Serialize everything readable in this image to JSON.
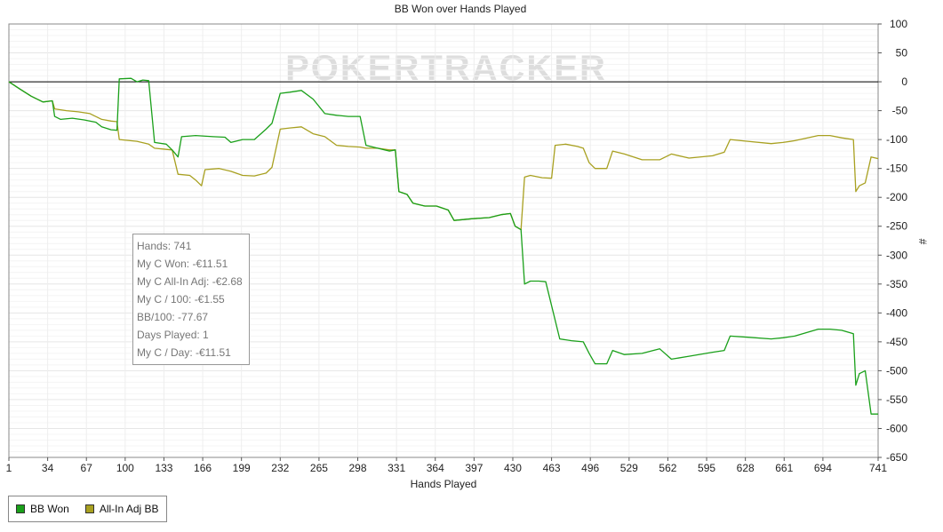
{
  "chart_data": {
    "type": "line",
    "title": "BB Won over Hands Played",
    "xlabel": "Hands Played",
    "ylabel": "#",
    "watermark": "POKERTRACKER",
    "xlim": [
      1,
      741
    ],
    "ylim": [
      -650,
      100
    ],
    "x_ticks": [
      1,
      34,
      67,
      100,
      133,
      166,
      199,
      232,
      265,
      298,
      331,
      364,
      397,
      430,
      463,
      496,
      529,
      562,
      595,
      628,
      661,
      694,
      741
    ],
    "y_ticks": [
      100,
      50,
      0,
      -50,
      -100,
      -150,
      -200,
      -250,
      -300,
      -350,
      -400,
      -450,
      -500,
      -550,
      -600,
      -650
    ],
    "grid": true,
    "legend_position": "bottom-left",
    "series": [
      {
        "name": "BB Won",
        "color": "#1aa01a",
        "points": [
          [
            1,
            0
          ],
          [
            10,
            -12
          ],
          [
            20,
            -25
          ],
          [
            30,
            -35
          ],
          [
            38,
            -33
          ],
          [
            40,
            -60
          ],
          [
            45,
            -65
          ],
          [
            55,
            -63
          ],
          [
            65,
            -66
          ],
          [
            75,
            -70
          ],
          [
            80,
            -78
          ],
          [
            88,
            -83
          ],
          [
            93,
            -84
          ],
          [
            95,
            5
          ],
          [
            105,
            6
          ],
          [
            110,
            0
          ],
          [
            115,
            3
          ],
          [
            120,
            2
          ],
          [
            125,
            -105
          ],
          [
            135,
            -108
          ],
          [
            140,
            -118
          ],
          [
            145,
            -130
          ],
          [
            148,
            -95
          ],
          [
            160,
            -93
          ],
          [
            175,
            -95
          ],
          [
            185,
            -96
          ],
          [
            190,
            -105
          ],
          [
            200,
            -100
          ],
          [
            210,
            -100
          ],
          [
            220,
            -82
          ],
          [
            225,
            -72
          ],
          [
            232,
            -20
          ],
          [
            240,
            -18
          ],
          [
            250,
            -15
          ],
          [
            260,
            -30
          ],
          [
            270,
            -55
          ],
          [
            280,
            -58
          ],
          [
            290,
            -60
          ],
          [
            300,
            -60
          ],
          [
            305,
            -110
          ],
          [
            315,
            -115
          ],
          [
            325,
            -120
          ],
          [
            330,
            -118
          ],
          [
            333,
            -190
          ],
          [
            340,
            -195
          ],
          [
            345,
            -210
          ],
          [
            355,
            -215
          ],
          [
            365,
            -215
          ],
          [
            375,
            -222
          ],
          [
            380,
            -240
          ],
          [
            395,
            -237
          ],
          [
            410,
            -235
          ],
          [
            420,
            -230
          ],
          [
            428,
            -228
          ],
          [
            432,
            -250
          ],
          [
            437,
            -256
          ],
          [
            440,
            -350
          ],
          [
            445,
            -345
          ],
          [
            452,
            -345
          ],
          [
            458,
            -346
          ],
          [
            470,
            -445
          ],
          [
            480,
            -448
          ],
          [
            490,
            -450
          ],
          [
            495,
            -470
          ],
          [
            500,
            -488
          ],
          [
            510,
            -488
          ],
          [
            515,
            -465
          ],
          [
            525,
            -472
          ],
          [
            540,
            -470
          ],
          [
            555,
            -462
          ],
          [
            565,
            -480
          ],
          [
            580,
            -475
          ],
          [
            600,
            -468
          ],
          [
            610,
            -465
          ],
          [
            615,
            -440
          ],
          [
            630,
            -442
          ],
          [
            650,
            -445
          ],
          [
            660,
            -443
          ],
          [
            670,
            -440
          ],
          [
            690,
            -428
          ],
          [
            700,
            -428
          ],
          [
            710,
            -430
          ],
          [
            720,
            -436
          ],
          [
            722,
            -525
          ],
          [
            725,
            -505
          ],
          [
            730,
            -500
          ],
          [
            735,
            -575
          ],
          [
            741,
            -575
          ]
        ]
      },
      {
        "name": "All-In Adj BB",
        "color": "#a8a020",
        "points": [
          [
            1,
            0
          ],
          [
            10,
            -12
          ],
          [
            20,
            -25
          ],
          [
            30,
            -35
          ],
          [
            38,
            -33
          ],
          [
            40,
            -47
          ],
          [
            50,
            -50
          ],
          [
            60,
            -52
          ],
          [
            70,
            -55
          ],
          [
            80,
            -65
          ],
          [
            88,
            -68
          ],
          [
            93,
            -69
          ],
          [
            95,
            -100
          ],
          [
            110,
            -103
          ],
          [
            120,
            -108
          ],
          [
            125,
            -115
          ],
          [
            135,
            -117
          ],
          [
            140,
            -118
          ],
          [
            145,
            -160
          ],
          [
            155,
            -162
          ],
          [
            160,
            -170
          ],
          [
            165,
            -180
          ],
          [
            168,
            -152
          ],
          [
            180,
            -150
          ],
          [
            190,
            -155
          ],
          [
            200,
            -162
          ],
          [
            210,
            -163
          ],
          [
            220,
            -158
          ],
          [
            225,
            -148
          ],
          [
            232,
            -82
          ],
          [
            240,
            -80
          ],
          [
            250,
            -78
          ],
          [
            260,
            -90
          ],
          [
            270,
            -95
          ],
          [
            280,
            -110
          ],
          [
            290,
            -112
          ],
          [
            300,
            -113
          ],
          [
            305,
            -115
          ],
          [
            315,
            -115
          ],
          [
            325,
            -118
          ],
          [
            330,
            -118
          ],
          [
            333,
            -190
          ],
          [
            340,
            -195
          ],
          [
            345,
            -210
          ],
          [
            355,
            -215
          ],
          [
            365,
            -215
          ],
          [
            375,
            -222
          ],
          [
            380,
            -240
          ],
          [
            395,
            -237
          ],
          [
            410,
            -235
          ],
          [
            420,
            -230
          ],
          [
            428,
            -228
          ],
          [
            432,
            -250
          ],
          [
            437,
            -256
          ],
          [
            440,
            -165
          ],
          [
            445,
            -162
          ],
          [
            455,
            -166
          ],
          [
            463,
            -167
          ],
          [
            466,
            -110
          ],
          [
            475,
            -108
          ],
          [
            485,
            -112
          ],
          [
            490,
            -115
          ],
          [
            495,
            -140
          ],
          [
            500,
            -150
          ],
          [
            510,
            -150
          ],
          [
            515,
            -120
          ],
          [
            525,
            -125
          ],
          [
            540,
            -135
          ],
          [
            555,
            -135
          ],
          [
            565,
            -125
          ],
          [
            580,
            -132
          ],
          [
            600,
            -128
          ],
          [
            610,
            -122
          ],
          [
            615,
            -100
          ],
          [
            630,
            -103
          ],
          [
            650,
            -107
          ],
          [
            660,
            -105
          ],
          [
            670,
            -102
          ],
          [
            690,
            -93
          ],
          [
            700,
            -93
          ],
          [
            710,
            -97
          ],
          [
            720,
            -100
          ],
          [
            722,
            -190
          ],
          [
            725,
            -180
          ],
          [
            730,
            -175
          ],
          [
            735,
            -130
          ],
          [
            741,
            -133
          ]
        ]
      }
    ]
  },
  "tooltip": {
    "lines": [
      "Hands: 741",
      "My C Won: -€11.51",
      "My C All-In Adj: -€2.68",
      "My C / 100: -€1.55",
      "BB/100: -77.67",
      "Days Played: 1",
      "My C / Day: -€11.51"
    ]
  },
  "legend": {
    "items": [
      {
        "label": "BB Won",
        "color": "#1aa01a"
      },
      {
        "label": "All-In Adj BB",
        "color": "#a8a020"
      }
    ]
  }
}
